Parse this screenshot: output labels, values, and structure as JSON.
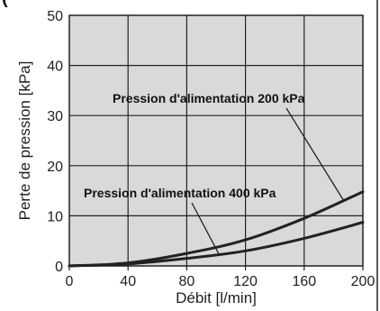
{
  "header_fragment": "(",
  "chart_data": {
    "type": "line",
    "xlabel": "Débit [l/min]",
    "ylabel": "Perte de pression [kPa]",
    "xlim": [
      0,
      200
    ],
    "ylim": [
      0,
      50
    ],
    "xticks": [
      0,
      40,
      80,
      120,
      160,
      200
    ],
    "yticks": [
      0,
      10,
      20,
      30,
      40,
      50
    ],
    "grid": true,
    "plot_background": "#d9d9d9",
    "line_color": "#222222",
    "series": [
      {
        "x": [
          0,
          40,
          80,
          120,
          160,
          200
        ],
        "y": [
          0,
          0.6,
          2.5,
          5.2,
          9.5,
          14.8
        ]
      },
      {
        "x": [
          0,
          40,
          80,
          120,
          160,
          200
        ],
        "y": [
          0,
          0.4,
          1.5,
          3.0,
          5.5,
          8.7
        ]
      }
    ],
    "annotations": [
      {
        "text": "Pression d'alimentation 200 kPa",
        "points_to": {
          "x": 187,
          "y": 13
        }
      },
      {
        "text": "Pression d'alimentation 400 kPa",
        "points_to": {
          "x": 102,
          "y": 2.3
        }
      }
    ]
  }
}
